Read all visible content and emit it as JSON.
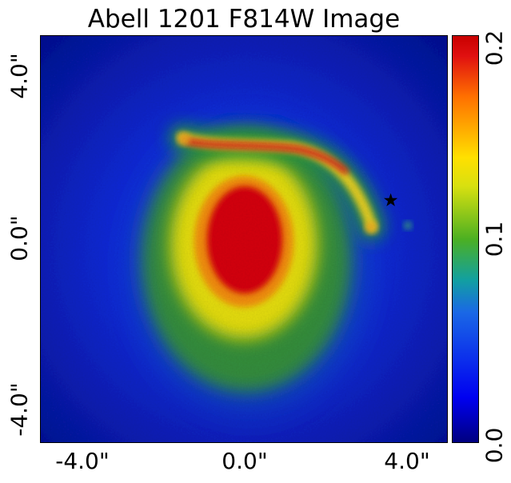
{
  "chart_data": {
    "type": "heatmap",
    "title": "Abell 1201 F814W Image",
    "xlabel": "",
    "ylabel": "",
    "x_ticks": [
      "-4.0\"",
      "0.0\"",
      "4.0\""
    ],
    "x_tick_values": [
      -4.0,
      0.0,
      4.0
    ],
    "y_ticks": [
      "4.0\"",
      "0.0\"",
      "-4.0\""
    ],
    "y_tick_values": [
      4.0,
      0.0,
      -4.0
    ],
    "xlim": [
      -5.0,
      5.0
    ],
    "ylim": [
      -5.0,
      5.0
    ],
    "colorbar": {
      "ticks": [
        "0.2",
        "0.1",
        "0.0"
      ],
      "tick_values": [
        0.2,
        0.1,
        0.0
      ],
      "range": [
        0.0,
        0.2
      ],
      "colormap": "jet"
    },
    "grid": false,
    "marker": {
      "symbol": "star",
      "x": 3.6,
      "y": 0.95,
      "color": "#000000"
    },
    "features": {
      "lens_galaxy": {
        "x": 0.0,
        "y": 0.0,
        "peak_value": 0.2
      },
      "lensed_arc": {
        "x_range": [
          -1.5,
          3.1
        ],
        "y_range": [
          0.2,
          2.5
        ],
        "peak_value": 0.2
      }
    }
  }
}
